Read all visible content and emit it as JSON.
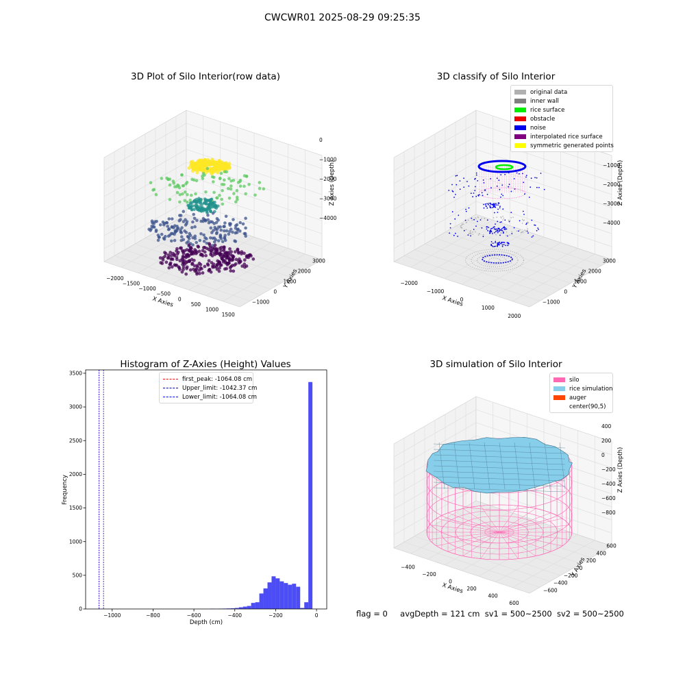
{
  "suptitle": "CWCWR01 2025-08-29 09:25:35",
  "status": {
    "flag": "flag = 0",
    "avg_depth": "avgDepth = 121 cm",
    "sv1": "sv1 = 500~2500",
    "sv2": "sv2 = 500~2500"
  },
  "chart_data": [
    {
      "type": "scatter",
      "panel": "top-left",
      "title": "3D Plot of Silo Interior(row data)",
      "xlabel": "X Axies",
      "ylabel": "Y Axies",
      "zlabel": "Z Axies (Depth)",
      "x_ticks": [
        "−2000",
        "−1500",
        "−1000",
        "−500",
        "0",
        "500",
        "1000",
        "1500"
      ],
      "y_ticks": [
        "−1000",
        "0",
        "1000",
        "2000",
        "3000"
      ],
      "z_ticks": [
        "0",
        "−1000",
        "−2000",
        "−3000",
        "−4000"
      ],
      "colormap": "viridis",
      "clusters": [
        {
          "depth": -1000,
          "color": "#fde725",
          "shape": "dense ring"
        },
        {
          "depth": -2000,
          "color": "#5ec962",
          "shape": "scattered ring"
        },
        {
          "depth": -3000,
          "color": "#21918c",
          "shape": "ring"
        },
        {
          "depth": -3500,
          "color": "#3b528b",
          "shape": "scattered ring"
        },
        {
          "depth": -4000,
          "color": "#440154",
          "shape": "dense floor"
        }
      ]
    },
    {
      "type": "scatter",
      "panel": "top-right",
      "title": "3D classify of Silo Interior",
      "xlabel": "X Axies",
      "ylabel": "Y Axies",
      "zlabel": "Z Axies (Depth)",
      "x_ticks": [
        "−2000",
        "−1000",
        "0",
        "1000",
        "2000"
      ],
      "y_ticks": [
        "−1000",
        "0",
        "1000",
        "2000",
        "3000"
      ],
      "z_ticks": [
        "−1000",
        "−2000",
        "−3000",
        "−4000"
      ],
      "legend": [
        {
          "label": "original data",
          "color": "#b0b0b0"
        },
        {
          "label": "inner wall",
          "color": "#808080"
        },
        {
          "label": "rice surface",
          "color": "#00ee00"
        },
        {
          "label": "obstacle",
          "color": "#ee0000"
        },
        {
          "label": "noise",
          "color": "#0000ee"
        },
        {
          "label": "interpolated rice surface",
          "color": "#800080"
        },
        {
          "label": "symmetric generated points",
          "color": "#ffff00"
        }
      ]
    },
    {
      "type": "bar",
      "panel": "bottom-left",
      "title": "Histogram of Z-Axies (Height) Values",
      "xlabel": "Depth (cm)",
      "ylabel": "Frequency",
      "xlim": [
        -1130,
        50
      ],
      "ylim": [
        0,
        3550
      ],
      "x_ticks": [
        -1000,
        -800,
        -600,
        -400,
        -200,
        0
      ],
      "y_ticks": [
        0,
        500,
        1000,
        1500,
        2000,
        2500,
        3000,
        3500
      ],
      "x_tick_labels": [
        "−1000",
        "−800",
        "−600",
        "−400",
        "−200",
        "0"
      ],
      "bar_color": "#4d4df7",
      "bin_width": 20,
      "bins": [
        {
          "x0": -520,
          "count": 4
        },
        {
          "x0": -500,
          "count": 2
        },
        {
          "x0": -480,
          "count": 5
        },
        {
          "x0": -460,
          "count": 6
        },
        {
          "x0": -440,
          "count": 8
        },
        {
          "x0": -420,
          "count": 10
        },
        {
          "x0": -400,
          "count": 15
        },
        {
          "x0": -380,
          "count": 25
        },
        {
          "x0": -360,
          "count": 35
        },
        {
          "x0": -340,
          "count": 45
        },
        {
          "x0": -320,
          "count": 90
        },
        {
          "x0": -300,
          "count": 100
        },
        {
          "x0": -280,
          "count": 230
        },
        {
          "x0": -260,
          "count": 305
        },
        {
          "x0": -240,
          "count": 395
        },
        {
          "x0": -220,
          "count": 485
        },
        {
          "x0": -200,
          "count": 455
        },
        {
          "x0": -180,
          "count": 410
        },
        {
          "x0": -160,
          "count": 385
        },
        {
          "x0": -140,
          "count": 360
        },
        {
          "x0": -120,
          "count": 375
        },
        {
          "x0": -100,
          "count": 330
        },
        {
          "x0": -80,
          "count": 15
        },
        {
          "x0": -60,
          "count": 100
        },
        {
          "x0": -40,
          "count": 3370
        }
      ],
      "vlines": [
        {
          "label": "first_peak: -1064.08 cm",
          "x": -1064.08,
          "color": "#ff0000"
        },
        {
          "label": "Upper_limit: -1042.37 cm",
          "x": -1042.37,
          "color": "#0000aa"
        },
        {
          "label": "Lower_limit: -1064.08 cm",
          "x": -1064.08,
          "color": "#0000ff"
        }
      ]
    },
    {
      "type": "surface",
      "panel": "bottom-right",
      "title": "3D simulation of Silo Interior",
      "xlabel": "X Axies",
      "ylabel": "Y Axies",
      "zlabel": "Z Axies (Depth)",
      "x_ticks": [
        "−400",
        "−200",
        "0",
        "200",
        "400",
        "600"
      ],
      "y_ticks": [
        "−600",
        "−400",
        "−200",
        "0",
        "200",
        "400",
        "600"
      ],
      "z_ticks": [
        "400",
        "200",
        "0",
        "−200",
        "−400",
        "−600",
        "−800"
      ],
      "legend": [
        {
          "label": "silo",
          "color": "#ff69b4"
        },
        {
          "label": "rice simulation",
          "color": "#87ceeb"
        },
        {
          "label": "auger",
          "color": "#ff4500"
        },
        {
          "label": "center(90,5)",
          "color": "#ffffff"
        }
      ]
    }
  ]
}
